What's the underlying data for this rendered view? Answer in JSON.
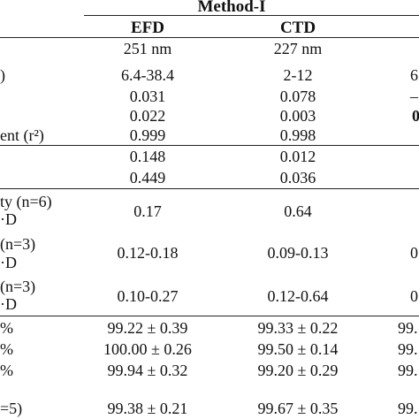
{
  "method_title": "Method-I",
  "columns": [
    "EFD",
    "CTD",
    ""
  ],
  "rows": [
    {
      "label": "",
      "efd": "251 nm",
      "ctd": "227 nm",
      "col3": ""
    },
    {
      "label": ")",
      "efd": "6.4-38.4",
      "ctd": "2-12",
      "col3": "6"
    },
    {
      "label": "",
      "efd": "0.031",
      "ctd": "0.078",
      "col3": "–"
    },
    {
      "label": "",
      "efd": "0.022",
      "ctd": "0.003",
      "col3": "0"
    },
    {
      "label": "ent (r²)",
      "efd": "0.999",
      "ctd": "0.998",
      "col3": ""
    },
    {
      "label": "",
      "efd": "0.148",
      "ctd": "0.012",
      "col3": ""
    },
    {
      "label": "",
      "efd": "0.449",
      "ctd": "0.036",
      "col3": ""
    },
    {
      "label": "ty (n=6)",
      "label2": "·D",
      "efd": "0.17",
      "ctd": "0.64",
      "col3": ""
    },
    {
      "label": "(n=3)",
      "label2": "·D",
      "efd": "0.12-0.18",
      "ctd": "0.09-0.13",
      "col3": "0"
    },
    {
      "label": "(n=3)",
      "label2": "·D",
      "efd": "0.10-0.27",
      "ctd": "0.12-0.64",
      "col3": "0"
    },
    {
      "label": "%",
      "efd": "99.22 ± 0.39",
      "ctd": "99.33 ± 0.22",
      "col3": "99."
    },
    {
      "label": "%",
      "efd": "100.00 ± 0.26",
      "ctd": "99.50 ± 0.14",
      "col3": "99."
    },
    {
      "label": "%",
      "efd": "99.94 ± 0.32",
      "ctd": "99.20 ± 0.29",
      "col3": "99."
    },
    {
      "label": "=5)",
      "efd": "99.38 ± 0.21",
      "ctd": "99.67 ± 0.35",
      "col3": "99."
    }
  ]
}
